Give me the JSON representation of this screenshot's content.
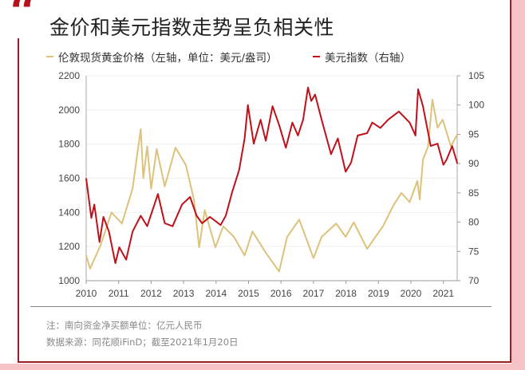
{
  "title": "金价和美元指数走势呈负相关性",
  "quote_mark": "“",
  "notes": {
    "note1": "注：南向资金净买额单位：亿元人民币",
    "source": "数据来源：同花顺iFinD；截至2021年1月20日"
  },
  "colors": {
    "gold": "#dcc27a",
    "dxy": "#c0101a",
    "accent": "#b5121b",
    "background_pink": "#f6c3c6"
  },
  "chart_data": {
    "type": "line",
    "title": "金价和美元指数走势呈负相关性",
    "x_ticks": [
      "2010",
      "2011",
      "2012",
      "2013",
      "2014",
      "2015",
      "2016",
      "2017",
      "2018",
      "2019",
      "2020",
      "2021"
    ],
    "x_range": [
      2010,
      2021.45
    ],
    "y_left": {
      "range": [
        1000,
        2200
      ],
      "ticks": [
        "1000",
        "1200",
        "1400",
        "1600",
        "1800",
        "2000",
        "2200"
      ]
    },
    "y_right": {
      "range": [
        70,
        105
      ],
      "ticks": [
        "70",
        "75",
        "80",
        "85",
        "90",
        "95",
        "100",
        "105"
      ]
    },
    "grid": true,
    "legend_position": "top",
    "series": [
      {
        "name": "伦敦现货黄金价格（左轴，单位：美元/盎司）",
        "axis": "left",
        "color": "#dcc27a",
        "points": [
          [
            2010.0,
            1148
          ],
          [
            2010.12,
            1070
          ],
          [
            2010.45,
            1210
          ],
          [
            2010.78,
            1400
          ],
          [
            2011.1,
            1335
          ],
          [
            2011.43,
            1540
          ],
          [
            2011.68,
            1888
          ],
          [
            2011.76,
            1600
          ],
          [
            2011.88,
            1787
          ],
          [
            2012.0,
            1538
          ],
          [
            2012.17,
            1771
          ],
          [
            2012.42,
            1553
          ],
          [
            2012.75,
            1779
          ],
          [
            2013.07,
            1678
          ],
          [
            2013.32,
            1475
          ],
          [
            2013.48,
            1195
          ],
          [
            2013.65,
            1413
          ],
          [
            2013.98,
            1195
          ],
          [
            2014.22,
            1319
          ],
          [
            2014.55,
            1257
          ],
          [
            2014.88,
            1148
          ],
          [
            2015.12,
            1288
          ],
          [
            2015.53,
            1164
          ],
          [
            2015.94,
            1054
          ],
          [
            2016.19,
            1257
          ],
          [
            2016.56,
            1358
          ],
          [
            2017.0,
            1132
          ],
          [
            2017.25,
            1257
          ],
          [
            2017.7,
            1335
          ],
          [
            2017.99,
            1257
          ],
          [
            2018.24,
            1342
          ],
          [
            2018.65,
            1187
          ],
          [
            2019.14,
            1319
          ],
          [
            2019.47,
            1444
          ],
          [
            2019.71,
            1514
          ],
          [
            2019.96,
            1460
          ],
          [
            2020.2,
            1584
          ],
          [
            2020.27,
            1475
          ],
          [
            2020.37,
            1709
          ],
          [
            2020.53,
            1787
          ],
          [
            2020.66,
            2060
          ],
          [
            2020.82,
            1896
          ],
          [
            2020.98,
            1943
          ],
          [
            2021.23,
            1787
          ],
          [
            2021.43,
            1857
          ]
        ]
      },
      {
        "name": "美元指数（右轴）",
        "axis": "right",
        "color": "#c0101a",
        "points": [
          [
            2010.0,
            87.5
          ],
          [
            2010.16,
            80.7
          ],
          [
            2010.25,
            83.0
          ],
          [
            2010.41,
            76.6
          ],
          [
            2010.53,
            80.9
          ],
          [
            2010.7,
            78.4
          ],
          [
            2010.9,
            73.0
          ],
          [
            2011.02,
            75.7
          ],
          [
            2011.23,
            73.6
          ],
          [
            2011.43,
            78.4
          ],
          [
            2011.68,
            81.1
          ],
          [
            2011.88,
            79.3
          ],
          [
            2012.21,
            84.8
          ],
          [
            2012.42,
            79.8
          ],
          [
            2012.66,
            79.3
          ],
          [
            2012.95,
            83.0
          ],
          [
            2013.2,
            84.3
          ],
          [
            2013.4,
            81.1
          ],
          [
            2013.57,
            79.8
          ],
          [
            2013.81,
            80.9
          ],
          [
            2014.14,
            79.5
          ],
          [
            2014.3,
            81.1
          ],
          [
            2014.5,
            85.2
          ],
          [
            2014.71,
            88.9
          ],
          [
            2014.88,
            94.3
          ],
          [
            2014.98,
            100.0
          ],
          [
            2015.16,
            93.4
          ],
          [
            2015.37,
            97.5
          ],
          [
            2015.53,
            93.9
          ],
          [
            2015.74,
            99.8
          ],
          [
            2015.94,
            96.6
          ],
          [
            2016.15,
            92.7
          ],
          [
            2016.35,
            97.0
          ],
          [
            2016.52,
            94.8
          ],
          [
            2016.68,
            97.5
          ],
          [
            2016.83,
            103.0
          ],
          [
            2016.93,
            100.7
          ],
          [
            2017.05,
            101.8
          ],
          [
            2017.25,
            97.5
          ],
          [
            2017.54,
            91.6
          ],
          [
            2017.75,
            94.3
          ],
          [
            2017.99,
            88.6
          ],
          [
            2018.16,
            90.2
          ],
          [
            2018.36,
            94.8
          ],
          [
            2018.65,
            95.2
          ],
          [
            2018.81,
            97.0
          ],
          [
            2019.06,
            96.1
          ],
          [
            2019.3,
            97.5
          ],
          [
            2019.63,
            98.9
          ],
          [
            2019.96,
            97.0
          ],
          [
            2020.14,
            94.8
          ],
          [
            2020.22,
            102.7
          ],
          [
            2020.37,
            99.8
          ],
          [
            2020.5,
            96.1
          ],
          [
            2020.61,
            93.0
          ],
          [
            2020.82,
            93.4
          ],
          [
            2021.0,
            89.8
          ],
          [
            2021.1,
            90.7
          ],
          [
            2021.27,
            93.0
          ],
          [
            2021.43,
            90.0
          ]
        ]
      }
    ]
  }
}
